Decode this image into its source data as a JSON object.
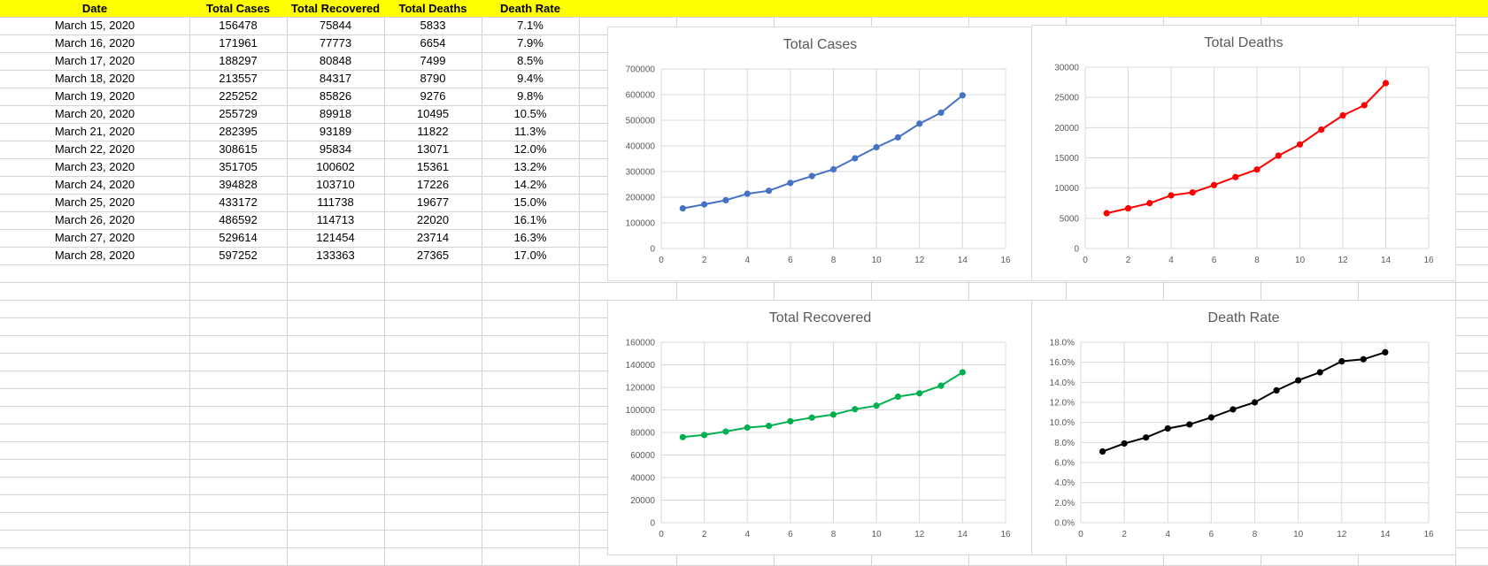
{
  "table": {
    "headers": [
      "Date",
      "Total Cases",
      "Total Recovered",
      "Total Deaths",
      "Death Rate"
    ],
    "rows": [
      [
        "March 15, 2020",
        "156478",
        "75844",
        "5833",
        "7.1%"
      ],
      [
        "March 16, 2020",
        "171961",
        "77773",
        "6654",
        "7.9%"
      ],
      [
        "March 17, 2020",
        "188297",
        "80848",
        "7499",
        "8.5%"
      ],
      [
        "March 18, 2020",
        "213557",
        "84317",
        "8790",
        "9.4%"
      ],
      [
        "March 19, 2020",
        "225252",
        "85826",
        "9276",
        "9.8%"
      ],
      [
        "March 20, 2020",
        "255729",
        "89918",
        "10495",
        "10.5%"
      ],
      [
        "March 21, 2020",
        "282395",
        "93189",
        "11822",
        "11.3%"
      ],
      [
        "March 22, 2020",
        "308615",
        "95834",
        "13071",
        "12.0%"
      ],
      [
        "March 23, 2020",
        "351705",
        "100602",
        "15361",
        "13.2%"
      ],
      [
        "March 24, 2020",
        "394828",
        "103710",
        "17226",
        "14.2%"
      ],
      [
        "March 25, 2020",
        "433172",
        "111738",
        "19677",
        "15.0%"
      ],
      [
        "March 26, 2020",
        "486592",
        "114713",
        "22020",
        "16.1%"
      ],
      [
        "March 27, 2020",
        "529614",
        "121454",
        "23714",
        "16.3%"
      ],
      [
        "March 28, 2020",
        "597252",
        "133363",
        "27365",
        "17.0%"
      ]
    ]
  },
  "colors": {
    "header_band": "#ffff00",
    "total_cases": "#4472c4",
    "total_deaths": "#ff0000",
    "total_recovered": "#00b050",
    "death_rate": "#000000"
  },
  "chart_data": [
    {
      "id": "total-cases",
      "type": "scatter",
      "title": "Total Cases",
      "xlabel": "",
      "ylabel": "",
      "xlim": [
        0,
        16
      ],
      "ylim": [
        0,
        700000
      ],
      "x_ticks": [
        0,
        2,
        4,
        6,
        8,
        10,
        12,
        14,
        16
      ],
      "y_ticks": [
        0,
        100000,
        200000,
        300000,
        400000,
        500000,
        600000,
        700000
      ],
      "y_format": "int",
      "grid": true,
      "legend": "none",
      "color": "#4472c4",
      "series": [
        {
          "x": [
            1,
            2,
            3,
            4,
            5,
            6,
            7,
            8,
            9,
            10,
            11,
            12,
            13,
            14
          ],
          "y": [
            156478,
            171961,
            188297,
            213557,
            225252,
            255729,
            282395,
            308615,
            351705,
            394828,
            433172,
            486592,
            529614,
            597252
          ]
        }
      ]
    },
    {
      "id": "total-deaths",
      "type": "scatter",
      "title": "Total Deaths",
      "xlabel": "",
      "ylabel": "",
      "xlim": [
        0,
        16
      ],
      "ylim": [
        0,
        30000
      ],
      "x_ticks": [
        0,
        2,
        4,
        6,
        8,
        10,
        12,
        14,
        16
      ],
      "y_ticks": [
        0,
        5000,
        10000,
        15000,
        20000,
        25000,
        30000
      ],
      "y_format": "int",
      "grid": true,
      "legend": "none",
      "color": "#ff0000",
      "series": [
        {
          "x": [
            1,
            2,
            3,
            4,
            5,
            6,
            7,
            8,
            9,
            10,
            11,
            12,
            13,
            14
          ],
          "y": [
            5833,
            6654,
            7499,
            8790,
            9276,
            10495,
            11822,
            13071,
            15361,
            17226,
            19677,
            22020,
            23714,
            27365
          ]
        }
      ]
    },
    {
      "id": "total-recovered",
      "type": "scatter",
      "title": "Total Recovered",
      "xlabel": "",
      "ylabel": "",
      "xlim": [
        0,
        16
      ],
      "ylim": [
        0,
        160000
      ],
      "x_ticks": [
        0,
        2,
        4,
        6,
        8,
        10,
        12,
        14,
        16
      ],
      "y_ticks": [
        0,
        20000,
        40000,
        60000,
        80000,
        100000,
        120000,
        140000,
        160000
      ],
      "y_format": "int",
      "grid": true,
      "legend": "none",
      "color": "#00b050",
      "series": [
        {
          "x": [
            1,
            2,
            3,
            4,
            5,
            6,
            7,
            8,
            9,
            10,
            11,
            12,
            13,
            14
          ],
          "y": [
            75844,
            77773,
            80848,
            84317,
            85826,
            89918,
            93189,
            95834,
            100602,
            103710,
            111738,
            114713,
            121454,
            133363
          ]
        }
      ]
    },
    {
      "id": "death-rate",
      "type": "scatter",
      "title": "Death Rate",
      "xlabel": "",
      "ylabel": "",
      "xlim": [
        0,
        16
      ],
      "ylim": [
        0,
        0.18
      ],
      "x_ticks": [
        0,
        2,
        4,
        6,
        8,
        10,
        12,
        14,
        16
      ],
      "y_ticks": [
        0,
        0.02,
        0.04,
        0.06,
        0.08,
        0.1,
        0.12,
        0.14,
        0.16,
        0.18
      ],
      "y_format": "percent1",
      "grid": true,
      "legend": "none",
      "color": "#000000",
      "series": [
        {
          "x": [
            1,
            2,
            3,
            4,
            5,
            6,
            7,
            8,
            9,
            10,
            11,
            12,
            13,
            14
          ],
          "y": [
            0.071,
            0.079,
            0.085,
            0.094,
            0.098,
            0.105,
            0.113,
            0.12,
            0.132,
            0.142,
            0.15,
            0.161,
            0.163,
            0.17
          ]
        }
      ]
    }
  ]
}
